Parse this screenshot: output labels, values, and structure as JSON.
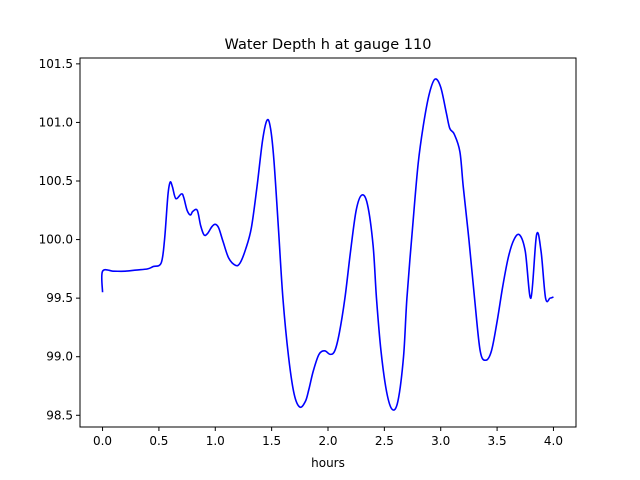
{
  "chart_data": {
    "type": "line",
    "title": "Water Depth h at gauge 110",
    "xlabel": "hours",
    "ylabel": "",
    "xlim": [
      -0.2,
      4.2
    ],
    "ylim": [
      98.4,
      101.55
    ],
    "xticks": [
      0.0,
      0.5,
      1.0,
      1.5,
      2.0,
      2.5,
      3.0,
      3.5,
      4.0
    ],
    "xtick_labels": [
      "0.0",
      "0.5",
      "1.0",
      "1.5",
      "2.0",
      "2.5",
      "3.0",
      "3.5",
      "4.0"
    ],
    "yticks": [
      98.5,
      99.0,
      99.5,
      100.0,
      100.5,
      101.0,
      101.5
    ],
    "ytick_labels": [
      "98.5",
      "99.0",
      "99.5",
      "100.0",
      "100.5",
      "101.0",
      "101.5"
    ],
    "grid": false,
    "legend": "none",
    "series": [
      {
        "color": "#0000ff",
        "x": [
          0.0,
          0.0,
          0.1,
          0.2,
          0.3,
          0.4,
          0.45,
          0.52,
          0.55,
          0.58,
          0.6,
          0.62,
          0.65,
          0.7,
          0.72,
          0.75,
          0.78,
          0.8,
          0.84,
          0.87,
          0.9,
          0.93,
          0.97,
          1.0,
          1.03,
          1.07,
          1.12,
          1.18,
          1.22,
          1.27,
          1.32,
          1.37,
          1.42,
          1.46,
          1.49,
          1.52,
          1.56,
          1.6,
          1.65,
          1.7,
          1.75,
          1.8,
          1.83,
          1.87,
          1.92,
          1.97,
          2.02,
          2.06,
          2.1,
          2.15,
          2.2,
          2.25,
          2.3,
          2.35,
          2.4,
          2.43,
          2.47,
          2.52,
          2.57,
          2.62,
          2.67,
          2.7,
          2.75,
          2.8,
          2.85,
          2.9,
          2.95,
          3.0,
          3.05,
          3.08,
          3.12,
          3.17,
          3.2,
          3.25,
          3.3,
          3.35,
          3.4,
          3.45,
          3.5,
          3.55,
          3.6,
          3.65,
          3.7,
          3.75,
          3.8,
          3.85,
          3.89,
          3.93,
          3.97,
          4.0
        ],
        "y": [
          99.55,
          99.73,
          99.73,
          99.73,
          99.74,
          99.75,
          99.77,
          99.8,
          100.0,
          100.38,
          100.49,
          100.45,
          100.35,
          100.39,
          100.36,
          100.25,
          100.21,
          100.24,
          100.25,
          100.12,
          100.04,
          100.05,
          100.11,
          100.13,
          100.1,
          99.98,
          99.84,
          99.78,
          99.8,
          99.92,
          100.1,
          100.45,
          100.85,
          101.02,
          100.95,
          100.68,
          100.1,
          99.5,
          99.0,
          98.68,
          98.57,
          98.62,
          98.72,
          98.88,
          99.02,
          99.05,
          99.02,
          99.05,
          99.2,
          99.5,
          99.9,
          100.25,
          100.38,
          100.3,
          99.95,
          99.5,
          99.05,
          98.7,
          98.55,
          98.62,
          99.0,
          99.5,
          100.1,
          100.65,
          101.0,
          101.25,
          101.37,
          101.3,
          101.08,
          100.95,
          100.9,
          100.75,
          100.45,
          100.0,
          99.5,
          99.05,
          98.97,
          99.05,
          99.3,
          99.6,
          99.85,
          100.0,
          100.04,
          99.9,
          99.5,
          100.04,
          99.9,
          99.5,
          99.5,
          99.51
        ]
      }
    ]
  }
}
